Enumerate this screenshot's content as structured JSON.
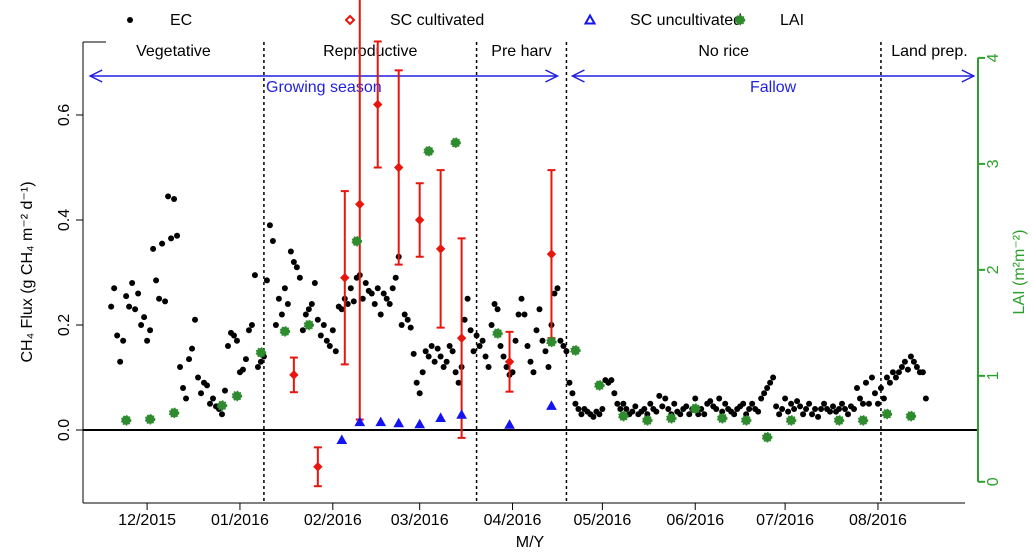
{
  "chart_data": {
    "type": "scatter",
    "x_label": "M/Y",
    "y_label": "CH₄ Flux (g CH₄ m⁻² d⁻¹)",
    "y2_label": "LAI (m²m⁻²)",
    "xlim": [
      -21.4,
      277.4
    ],
    "xticks": [
      {
        "value": 0,
        "label": "12/2015"
      },
      {
        "value": 31,
        "label": "01/2016"
      },
      {
        "value": 62,
        "label": "02/2016"
      },
      {
        "value": 91,
        "label": "03/2016"
      },
      {
        "value": 122,
        "label": "04/2016"
      },
      {
        "value": 152,
        "label": "05/2016"
      },
      {
        "value": 183,
        "label": "06/2016"
      },
      {
        "value": 213,
        "label": "07/2016"
      },
      {
        "value": 244,
        "label": "08/2016"
      }
    ],
    "ylim": [
      -0.139,
      0.739
    ],
    "yticks": [
      {
        "value": 0,
        "label": "0.0"
      },
      0.2,
      0.4,
      0.6
    ],
    "y2lim": [
      -0.2,
      4.15
    ],
    "y2ticks": [
      0,
      1,
      2,
      3,
      4
    ],
    "y2_color": "#2ca02c",
    "vlines": [
      39,
      110,
      140,
      245
    ],
    "phases": [
      "Vegetative",
      "Reproductive",
      "Pre harv",
      "No rice",
      "Land prep."
    ],
    "arrows": [
      {
        "label": "Growing season",
        "from": -19,
        "to": 137
      },
      {
        "label": "Fallow",
        "from": 142,
        "to": 276
      }
    ],
    "arrow_color": "#1f1fe0",
    "series": [
      {
        "name": "EC",
        "color": "#000000",
        "marker": "circle",
        "x": [
          -12,
          -11,
          -10,
          -9,
          -8,
          -7,
          -6,
          -5,
          -4,
          -3,
          -2,
          -1,
          0,
          1,
          2,
          3,
          4,
          5,
          6,
          7,
          8,
          9,
          10,
          11,
          12,
          13,
          14,
          15,
          16,
          17,
          18,
          19,
          20,
          21,
          22,
          23,
          24,
          25,
          26,
          27,
          28,
          29,
          30,
          31,
          32,
          33,
          34,
          35,
          36,
          37,
          38,
          39,
          40,
          41,
          42,
          43,
          44,
          45,
          46,
          47,
          48,
          49,
          50,
          51,
          52,
          53,
          54,
          55,
          56,
          57,
          58,
          59,
          60,
          61,
          62,
          63,
          64,
          65,
          66,
          67,
          68,
          69,
          70,
          71,
          72,
          73,
          74,
          75,
          76,
          77,
          78,
          79,
          80,
          81,
          82,
          83,
          84,
          85,
          86,
          87,
          88,
          89,
          90,
          91,
          92,
          93,
          94,
          95,
          96,
          97,
          98,
          99,
          100,
          101,
          102,
          103,
          104,
          105,
          106,
          107,
          108,
          109,
          110,
          111,
          112,
          113,
          114,
          115,
          116,
          117,
          118,
          119,
          120,
          121,
          122,
          123,
          124,
          125,
          126,
          127,
          128,
          129,
          130,
          131,
          132,
          133,
          134,
          135,
          136,
          137,
          138,
          139,
          140,
          141,
          142,
          143,
          144,
          145,
          146,
          147,
          148,
          149,
          150,
          151,
          152,
          153,
          154,
          155,
          156,
          157,
          158,
          159,
          160,
          161,
          162,
          163,
          164,
          165,
          166,
          167,
          168,
          169,
          170,
          171,
          172,
          173,
          174,
          175,
          176,
          177,
          178,
          179,
          180,
          181,
          182,
          183,
          184,
          185,
          186,
          187,
          188,
          189,
          190,
          191,
          192,
          193,
          194,
          195,
          196,
          197,
          198,
          199,
          200,
          201,
          202,
          203,
          204,
          205,
          206,
          207,
          208,
          209,
          210,
          211,
          212,
          213,
          214,
          215,
          216,
          217,
          218,
          219,
          220,
          221,
          222,
          223,
          224,
          225,
          226,
          227,
          228,
          229,
          230,
          231,
          232,
          233,
          234,
          235,
          236,
          237,
          238,
          239,
          240,
          241,
          242,
          243,
          244,
          245,
          246,
          247,
          248,
          249,
          250,
          251,
          252,
          253,
          254,
          255,
          256,
          257,
          258,
          259,
          260
        ],
        "values": [
          0.235,
          0.27,
          0.18,
          0.13,
          0.17,
          0.255,
          0.235,
          0.28,
          0.23,
          0.26,
          0.2,
          0.215,
          0.17,
          0.19,
          0.345,
          0.285,
          0.25,
          0.355,
          0.245,
          0.445,
          0.365,
          0.44,
          0.37,
          0.12,
          0.08,
          0.06,
          0.135,
          0.155,
          0.21,
          0.1,
          0.07,
          0.09,
          0.085,
          0.05,
          0.06,
          0.045,
          0.04,
          0.03,
          0.075,
          0.16,
          0.185,
          0.18,
          0.17,
          0.11,
          0.115,
          0.135,
          0.19,
          0.2,
          0.295,
          0.12,
          0.13,
          0.14,
          0.285,
          0.39,
          0.36,
          0.2,
          0.25,
          0.22,
          0.27,
          0.24,
          0.34,
          0.32,
          0.31,
          0.29,
          0.19,
          0.22,
          0.23,
          0.24,
          0.28,
          0.21,
          0.18,
          0.2,
          0.17,
          0.16,
          0.19,
          0.15,
          0.235,
          0.23,
          0.25,
          0.24,
          0.27,
          0.245,
          0.29,
          0.295,
          0.25,
          0.28,
          0.265,
          0.26,
          0.24,
          0.27,
          0.22,
          0.26,
          0.25,
          0.24,
          0.27,
          0.29,
          0.33,
          0.2,
          0.22,
          0.21,
          0.195,
          0.145,
          0.09,
          0.07,
          0.11,
          0.15,
          0.14,
          0.16,
          0.13,
          0.155,
          0.14,
          0.12,
          0.13,
          0.16,
          0.15,
          0.11,
          0.09,
          0.12,
          0.21,
          0.25,
          0.19,
          0.15,
          0.18,
          0.16,
          0.17,
          0.14,
          0.12,
          0.2,
          0.24,
          0.23,
          0.16,
          0.14,
          0.12,
          0.105,
          0.11,
          0.17,
          0.22,
          0.25,
          0.22,
          0.16,
          0.13,
          0.11,
          0.19,
          0.23,
          0.17,
          0.15,
          0.12,
          0.2,
          0.26,
          0.27,
          0.17,
          0.16,
          0.15,
          0.09,
          0.07,
          0.05,
          0.04,
          0.03,
          0.04,
          0.035,
          0.03,
          0.025,
          0.035,
          0.03,
          0.04,
          0.095,
          0.09,
          0.095,
          0.07,
          0.05,
          0.04,
          0.05,
          0.04,
          0.03,
          0.035,
          0.045,
          0.03,
          0.035,
          0.04,
          0.03,
          0.05,
          0.04,
          0.035,
          0.065,
          0.045,
          0.06,
          0.04,
          0.03,
          0.05,
          0.035,
          0.03,
          0.04,
          0.045,
          0.03,
          0.04,
          0.06,
          0.03,
          0.04,
          0.03,
          0.05,
          0.055,
          0.045,
          0.04,
          0.06,
          0.035,
          0.05,
          0.04,
          0.035,
          0.03,
          0.04,
          0.045,
          0.05,
          0.03,
          0.04,
          0.05,
          0.04,
          0.035,
          0.06,
          0.07,
          0.08,
          0.09,
          0.1,
          0.045,
          0.03,
          0.04,
          0.06,
          0.035,
          0.05,
          0.04,
          0.055,
          0.045,
          0.03,
          0.04,
          0.05,
          0.03,
          0.04,
          0.025,
          0.04,
          0.05,
          0.04,
          0.035,
          0.045,
          0.035,
          0.04,
          0.05,
          0.04,
          0.03,
          0.045,
          0.04,
          0.08,
          0.06,
          0.05,
          0.09,
          0.05,
          0.1,
          0.07,
          0.05,
          0.08,
          0.06,
          0.1,
          0.09,
          0.11,
          0.1,
          0.11,
          0.12,
          0.13,
          0.115,
          0.14,
          0.13,
          0.12,
          0.11,
          0.11,
          0.06
        ]
      },
      {
        "name": "SC cultivated",
        "color": "#e8160c",
        "marker": "diamond",
        "x": [
          49,
          57,
          66,
          71,
          77,
          84,
          91,
          98,
          105,
          121,
          135
        ],
        "values": [
          0.105,
          -0.07,
          0.29,
          0.43,
          0.62,
          0.5,
          0.4,
          0.345,
          0.175,
          0.13,
          0.335
        ],
        "errors": [
          0.033,
          0.037,
          0.165,
          0.41,
          0.12,
          0.185,
          0.07,
          0.15,
          0.19,
          0.057,
          0.16
        ]
      },
      {
        "name": "SC uncultivated",
        "color": "#1414f0",
        "marker": "triangle",
        "x": [
          65,
          71,
          78,
          84,
          91,
          98,
          105,
          121,
          135
        ],
        "values": [
          -0.019,
          0.015,
          0.015,
          0.013,
          0.011,
          0.023,
          0.029,
          0.01,
          0.046
        ]
      },
      {
        "name": "LAI",
        "color": "#2e8b2e",
        "marker": "star",
        "axis": "y2",
        "x": [
          -7,
          1,
          9,
          25,
          30,
          38,
          46,
          54,
          70,
          94,
          103,
          117,
          135,
          143,
          151,
          159,
          167,
          175,
          183,
          192,
          200,
          207,
          215,
          231,
          239,
          247,
          255
        ],
        "values": [
          0.58,
          0.59,
          0.65,
          0.72,
          0.81,
          1.22,
          1.42,
          1.48,
          2.27,
          3.12,
          3.2,
          1.4,
          1.32,
          1.24,
          0.91,
          0.62,
          0.58,
          0.6,
          0.69,
          0.6,
          0.58,
          0.42,
          0.58,
          0.58,
          0.58,
          0.64,
          0.62
        ]
      }
    ]
  }
}
